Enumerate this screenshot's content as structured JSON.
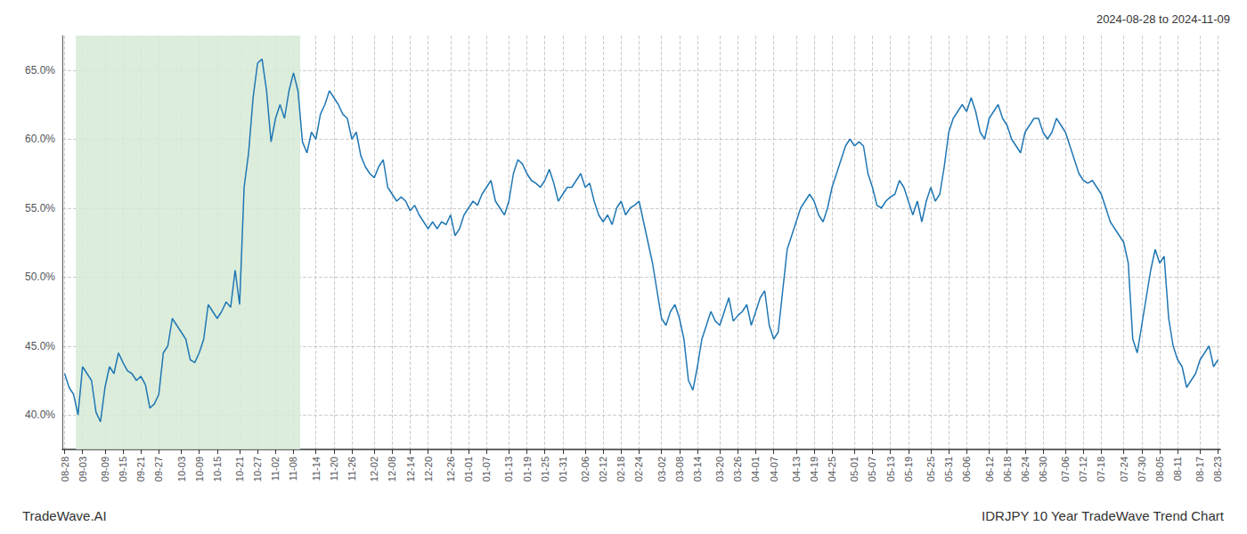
{
  "chart_data": {
    "type": "line",
    "title": "IDRJPY 10 Year TradeWave Trend Chart",
    "subtitle": "2024-08-28 to 2024-11-09",
    "annotations": [
      "TradeWave.AI"
    ],
    "color": "#1f77b4",
    "grid": true,
    "shaded_region": {
      "start": 3,
      "end": 52,
      "color": "#d6ead6"
    },
    "ylim": [
      37.5,
      67.5
    ],
    "yticks": [
      {
        "value": 40.0,
        "label": "40.0%"
      },
      {
        "value": 45.0,
        "label": "45.0%"
      },
      {
        "value": 50.0,
        "label": "50.0%"
      },
      {
        "value": 55.0,
        "label": "55.0%"
      },
      {
        "value": 60.0,
        "label": "60.0%"
      },
      {
        "value": 65.0,
        "label": "65.0%"
      }
    ],
    "categories": [
      "08-28",
      null,
      null,
      null,
      "09-03",
      null,
      null,
      null,
      null,
      "09-09",
      null,
      null,
      null,
      "09-15",
      null,
      null,
      null,
      "09-21",
      null,
      null,
      null,
      "09-27",
      null,
      null,
      null,
      null,
      "10-03",
      null,
      null,
      null,
      "10-09",
      null,
      null,
      null,
      "10-15",
      null,
      null,
      null,
      null,
      "10-21",
      null,
      null,
      null,
      "10-27",
      null,
      null,
      null,
      "11-02",
      null,
      null,
      null,
      "11-08",
      null,
      null,
      null,
      null,
      "11-14",
      null,
      null,
      null,
      "11-20",
      null,
      null,
      null,
      "11-26",
      null,
      null,
      null,
      null,
      "12-02",
      null,
      null,
      null,
      "12-08",
      null,
      null,
      null,
      "12-14",
      null,
      null,
      null,
      "12-20",
      null,
      null,
      null,
      null,
      "12-26",
      null,
      null,
      null,
      "01-01",
      null,
      null,
      null,
      "01-07",
      null,
      null,
      null,
      null,
      "01-13",
      null,
      null,
      null,
      "01-19",
      null,
      null,
      null,
      "01-25",
      null,
      null,
      null,
      "01-31",
      null,
      null,
      null,
      null,
      "02-06",
      null,
      null,
      null,
      "02-12",
      null,
      null,
      null,
      "02-18",
      null,
      null,
      null,
      "02-24",
      null,
      null,
      null,
      null,
      "03-02",
      null,
      null,
      null,
      "03-08",
      null,
      null,
      null,
      "03-14",
      null,
      null,
      null,
      null,
      "03-20",
      null,
      null,
      null,
      "03-26",
      null,
      null,
      null,
      "04-01",
      null,
      null,
      null,
      "04-07",
      null,
      null,
      null,
      null,
      "04-13",
      null,
      null,
      null,
      "04-19",
      null,
      null,
      null,
      "04-25",
      null,
      null,
      null,
      null,
      "05-01",
      null,
      null,
      null,
      "05-07",
      null,
      null,
      null,
      "05-13",
      null,
      null,
      null,
      "05-19",
      null,
      null,
      null,
      null,
      "05-25",
      null,
      null,
      null,
      "05-31",
      null,
      null,
      null,
      "06-06",
      null,
      null,
      null,
      null,
      "06-12",
      null,
      null,
      null,
      "06-18",
      null,
      null,
      null,
      "06-24",
      null,
      null,
      null,
      "06-30",
      null,
      null,
      null,
      null,
      "07-06",
      null,
      null,
      null,
      "07-12",
      null,
      null,
      null,
      "07-18",
      null,
      null,
      null,
      null,
      "07-24",
      null,
      null,
      null,
      "07-30",
      null,
      null,
      null,
      "08-05",
      null,
      null,
      null,
      "08-11",
      null,
      null,
      null,
      null,
      "08-17",
      null,
      null,
      null,
      "08-23"
    ],
    "values": [
      43.0,
      42.0,
      41.5,
      40.0,
      43.5,
      43.0,
      42.5,
      40.2,
      39.5,
      42.0,
      43.5,
      43.0,
      44.5,
      43.8,
      43.2,
      43.0,
      42.5,
      42.8,
      42.2,
      40.5,
      40.8,
      41.5,
      44.5,
      45.0,
      47.0,
      46.5,
      46.0,
      45.5,
      44.0,
      43.8,
      44.5,
      45.5,
      48.0,
      47.5,
      47.0,
      47.5,
      48.2,
      47.8,
      50.5,
      48.0,
      56.5,
      59.0,
      63.0,
      65.5,
      65.8,
      63.5,
      59.8,
      61.5,
      62.5,
      61.5,
      63.5,
      64.8,
      63.5,
      59.8,
      59.0,
      60.5,
      60.0,
      61.8,
      62.5,
      63.5,
      63.0,
      62.5,
      61.8,
      61.5,
      60.0,
      60.5,
      58.8,
      58.0,
      57.5,
      57.2,
      58.0,
      58.5,
      56.5,
      56.0,
      55.5,
      55.8,
      55.5,
      54.8,
      55.2,
      54.5,
      54.0,
      53.5,
      54.0,
      53.5,
      54.0,
      53.8,
      54.5,
      53.0,
      53.5,
      54.5,
      55.0,
      55.5,
      55.2,
      56.0,
      56.5,
      57.0,
      55.5,
      55.0,
      54.5,
      55.5,
      57.5,
      58.5,
      58.2,
      57.5,
      57.0,
      56.8,
      56.5,
      57.0,
      57.8,
      56.8,
      55.5,
      56.0,
      56.5,
      56.5,
      57.0,
      57.5,
      56.5,
      56.8,
      55.5,
      54.5,
      54.0,
      54.5,
      53.8,
      55.0,
      55.5,
      54.5,
      55.0,
      55.2,
      55.5,
      54.0,
      52.5,
      51.0,
      49.0,
      47.0,
      46.5,
      47.5,
      48.0,
      47.0,
      45.5,
      42.5,
      41.8,
      43.5,
      45.5,
      46.5,
      47.5,
      46.8,
      46.5,
      47.5,
      48.5,
      46.8,
      47.2,
      47.5,
      48.0,
      46.5,
      47.5,
      48.5,
      49.0,
      46.5,
      45.5,
      46.0,
      49.0,
      52.0,
      53.0,
      54.0,
      55.0,
      55.5,
      56.0,
      55.5,
      54.5,
      54.0,
      55.0,
      56.5,
      57.5,
      58.5,
      59.5,
      60.0,
      59.5,
      59.8,
      59.5,
      57.5,
      56.5,
      55.2,
      55.0,
      55.5,
      55.8,
      56.0,
      57.0,
      56.5,
      55.5,
      54.5,
      55.5,
      54.0,
      55.5,
      56.5,
      55.5,
      56.0,
      58.0,
      60.5,
      61.5,
      62.0,
      62.5,
      62.0,
      63.0,
      62.0,
      60.5,
      60.0,
      61.5,
      62.0,
      62.5,
      61.5,
      61.0,
      60.0,
      59.5,
      59.0,
      60.5,
      61.0,
      61.5,
      61.5,
      60.5,
      60.0,
      60.5,
      61.5,
      61.0,
      60.5,
      59.5,
      58.5,
      57.5,
      57.0,
      56.8,
      57.0,
      56.5,
      56.0,
      55.0,
      54.0,
      53.5,
      53.0,
      52.5,
      51.0,
      45.5,
      44.5,
      46.5,
      48.5,
      50.5,
      52.0,
      51.0,
      51.5,
      47.0,
      45.0,
      44.0,
      43.5,
      42.0,
      42.5,
      43.0,
      44.0,
      44.5,
      45.0,
      43.5,
      44.0
    ]
  }
}
